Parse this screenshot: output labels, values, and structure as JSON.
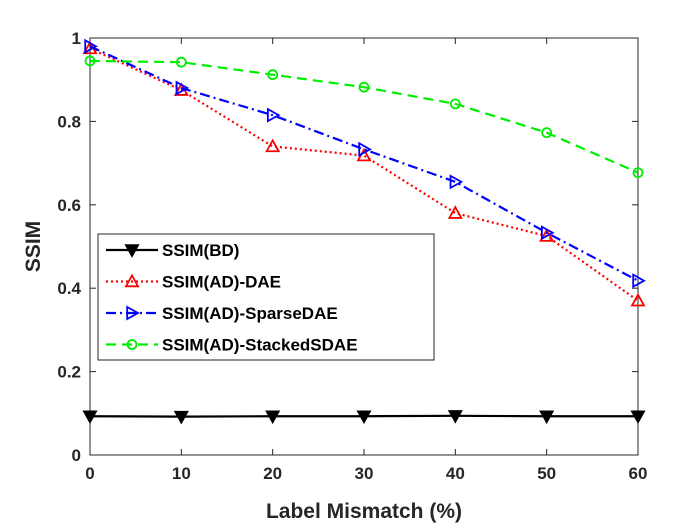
{
  "chart_data": {
    "type": "line",
    "title": "",
    "xlabel": "Label Mismatch (%)",
    "ylabel": "SSIM",
    "xlim": [
      0,
      60
    ],
    "ylim": [
      0,
      1
    ],
    "xticks": [
      0,
      10,
      20,
      30,
      40,
      50,
      60
    ],
    "yticks": [
      0,
      0.2,
      0.4,
      0.6,
      0.8,
      1
    ],
    "ytick_labels": [
      "0",
      "0.2",
      "0.4",
      "0.6",
      "0.8",
      "1"
    ],
    "grid": false,
    "legend_position": "center-left",
    "x": [
      0,
      10,
      20,
      30,
      40,
      50,
      60
    ],
    "series": [
      {
        "name": "SSIM(BD)",
        "values": [
          0.093,
          0.092,
          0.093,
          0.093,
          0.094,
          0.093,
          0.093
        ],
        "color": "#000000",
        "line_style": "solid",
        "marker": "triangle-down"
      },
      {
        "name": "SSIM(AD)-DAE",
        "values": [
          0.975,
          0.875,
          0.74,
          0.718,
          0.58,
          0.525,
          0.37
        ],
        "color": "#ff0000",
        "line_style": "dotted",
        "marker": "triangle-up"
      },
      {
        "name": "SSIM(AD)-SparseDAE",
        "values": [
          0.98,
          0.88,
          0.815,
          0.733,
          0.655,
          0.533,
          0.418
        ],
        "color": "#0000ff",
        "line_style": "dash-dot",
        "marker": "triangle-right"
      },
      {
        "name": "SSIM(AD)-StackedSDAE",
        "values": [
          0.945,
          0.942,
          0.912,
          0.882,
          0.842,
          0.773,
          0.677
        ],
        "color": "#00ee00",
        "line_style": "dashed",
        "marker": "circle"
      }
    ]
  }
}
